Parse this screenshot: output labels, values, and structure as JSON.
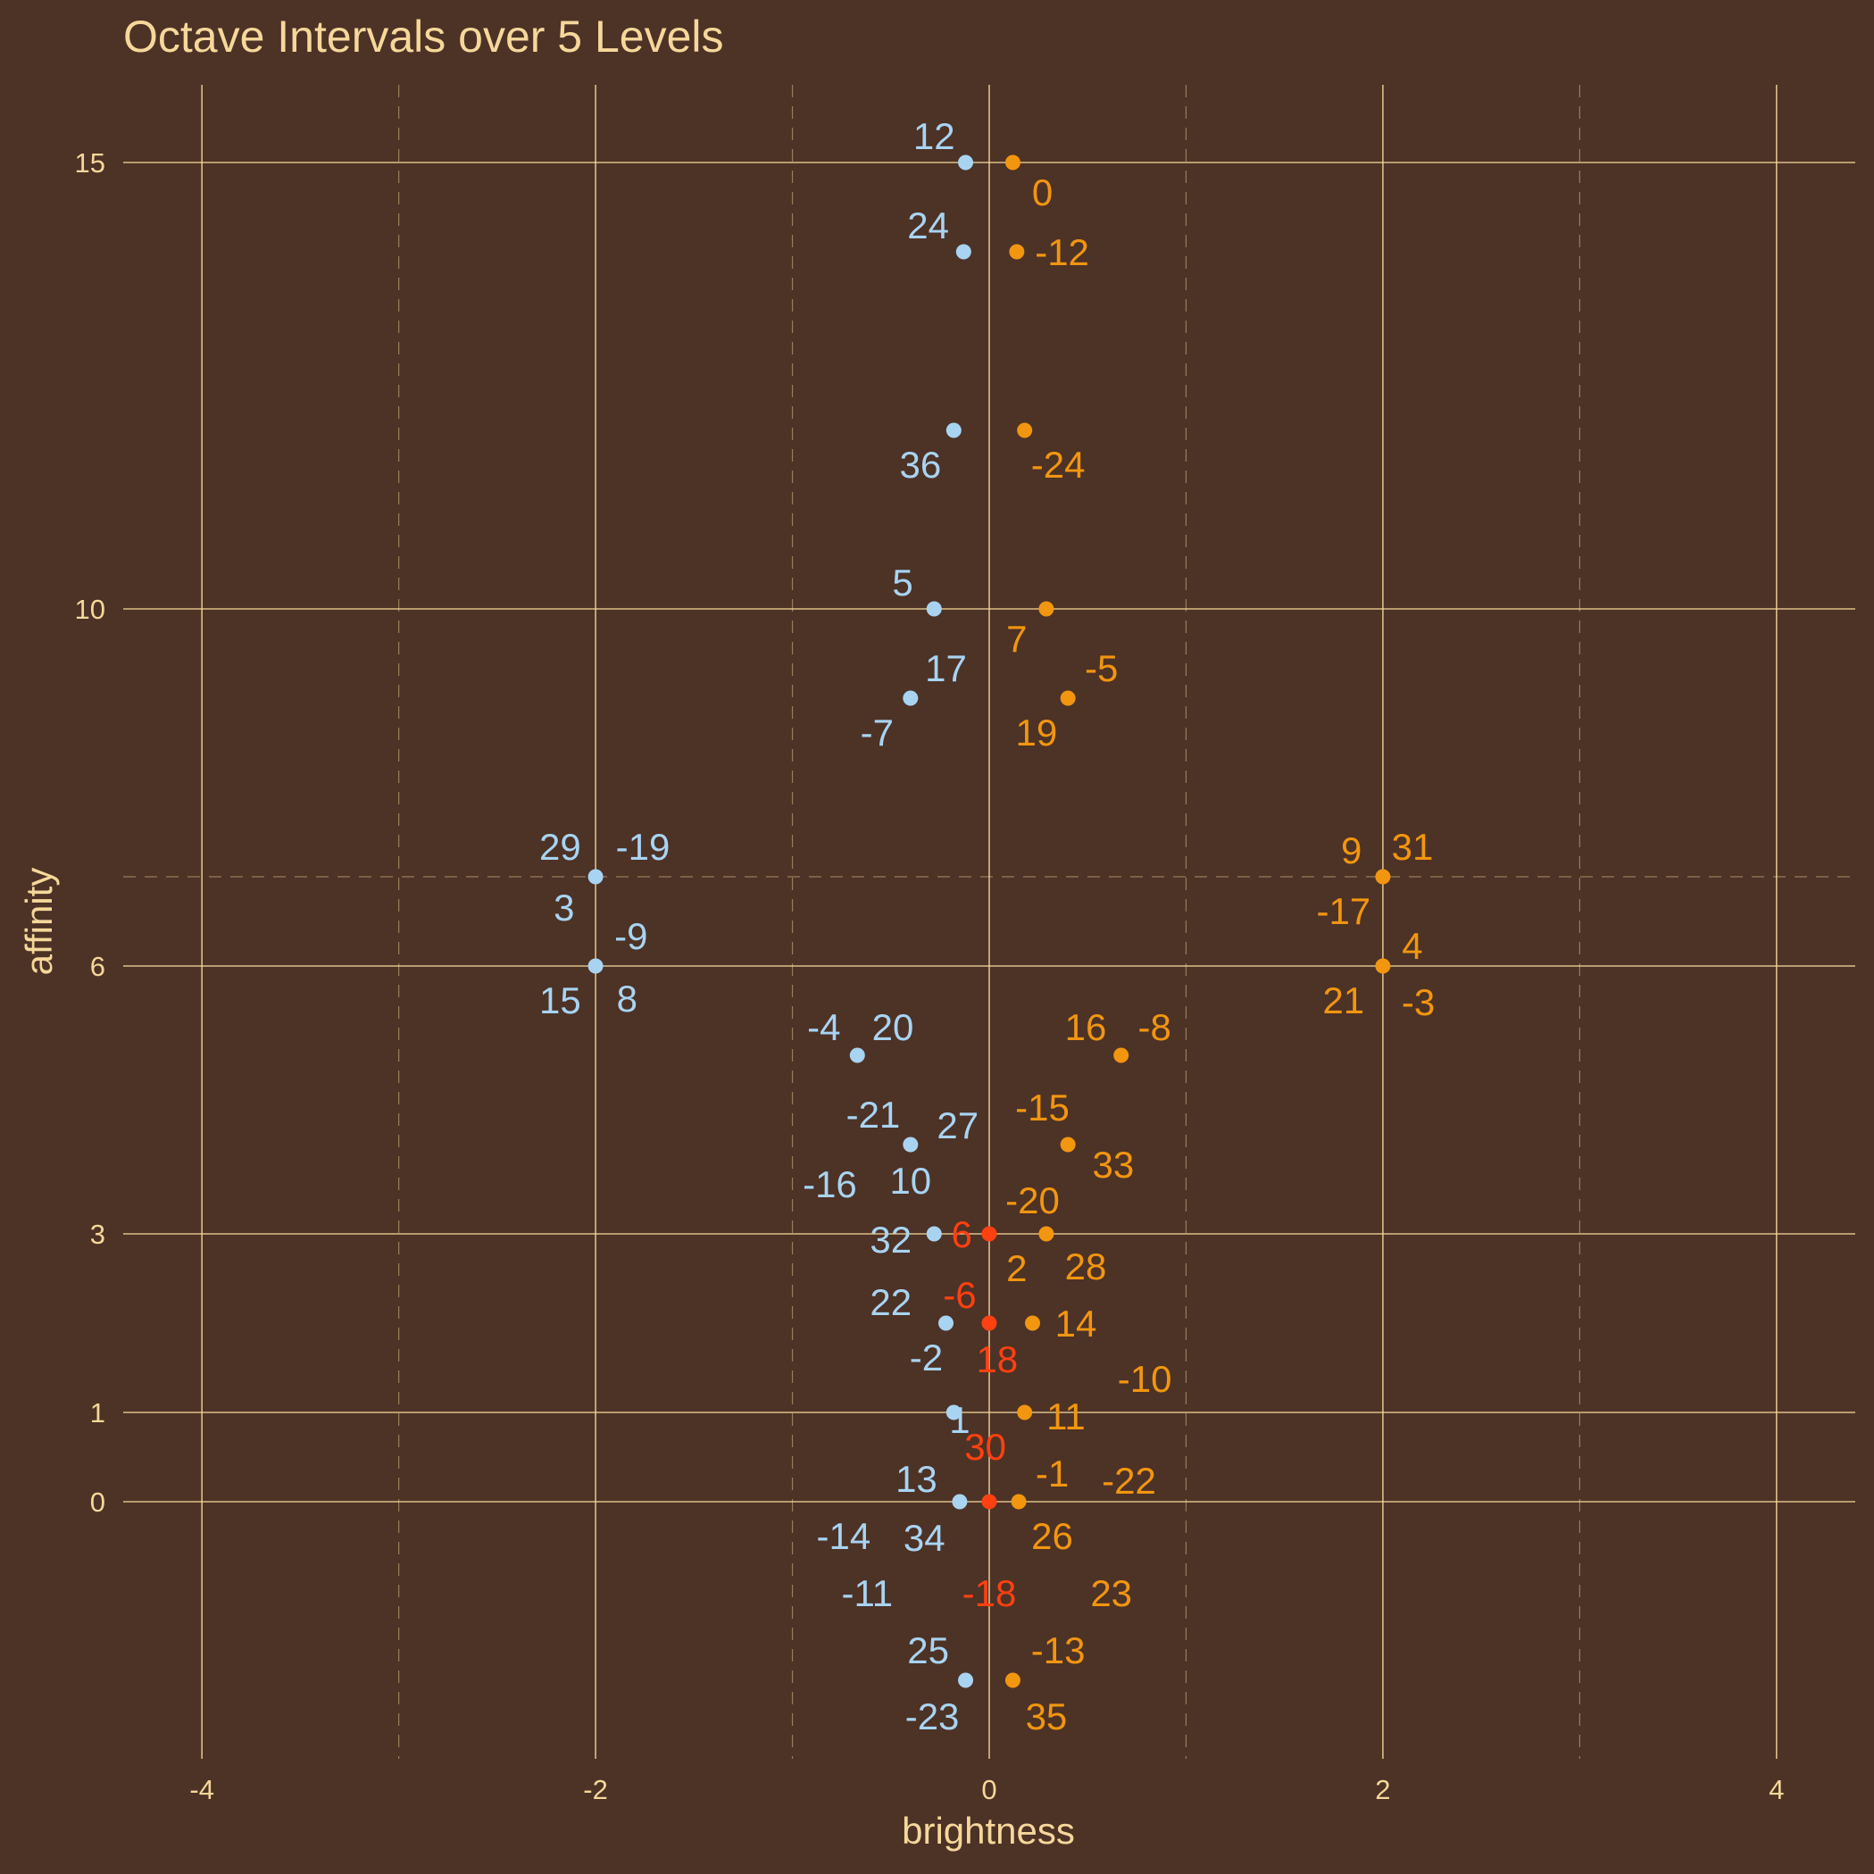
{
  "chart_data": {
    "type": "scatter",
    "title": "Octave Intervals over 5 Levels",
    "xlabel": "brightness",
    "ylabel": "affinity",
    "xlim": [
      -4.4,
      4.4
    ],
    "y_scale": "sqrt-like (affinity values increase non-linearly)",
    "x_ticks": [
      -4,
      -2,
      0,
      2,
      4
    ],
    "x_tick_labels": [
      "-4",
      "-2",
      "0",
      "2",
      "4"
    ],
    "y_ticks": [
      0,
      1,
      3,
      6,
      10,
      15
    ],
    "y_tick_labels": [
      "0",
      "1",
      "3",
      "6",
      "10",
      "15"
    ],
    "grid": true,
    "colors": {
      "background": "#4d3226",
      "grid": "#f5d89a",
      "text": "#f5d89a",
      "blue": "#a8d4f2",
      "orange": "#f2960f",
      "red": "#ff4010"
    },
    "points": [
      {
        "x": -0.12,
        "y": 15,
        "color": "blue"
      },
      {
        "x": 0.12,
        "y": 15,
        "color": "orange"
      },
      {
        "x": -0.13,
        "y": 14,
        "color": "blue"
      },
      {
        "x": 0.14,
        "y": 14,
        "color": "orange"
      },
      {
        "x": -0.18,
        "y": 12,
        "color": "blue"
      },
      {
        "x": 0.18,
        "y": 12,
        "color": "orange"
      },
      {
        "x": -0.28,
        "y": 10,
        "color": "blue"
      },
      {
        "x": 0.29,
        "y": 10,
        "color": "orange"
      },
      {
        "x": -0.4,
        "y": 9,
        "color": "blue"
      },
      {
        "x": 0.4,
        "y": 9,
        "color": "orange"
      },
      {
        "x": -2,
        "y": 7,
        "color": "blue"
      },
      {
        "x": 2,
        "y": 7,
        "color": "orange"
      },
      {
        "x": -2,
        "y": 6,
        "color": "blue"
      },
      {
        "x": 2,
        "y": 6,
        "color": "orange"
      },
      {
        "x": -0.67,
        "y": 5,
        "color": "blue"
      },
      {
        "x": 0.67,
        "y": 5,
        "color": "orange"
      },
      {
        "x": -0.4,
        "y": 4,
        "color": "blue"
      },
      {
        "x": 0.4,
        "y": 4,
        "color": "orange"
      },
      {
        "x": -0.28,
        "y": 3,
        "color": "blue"
      },
      {
        "x": 0,
        "y": 3,
        "color": "red"
      },
      {
        "x": 0.29,
        "y": 3,
        "color": "orange"
      },
      {
        "x": -0.22,
        "y": 2,
        "color": "blue"
      },
      {
        "x": 0,
        "y": 2,
        "color": "red"
      },
      {
        "x": 0.22,
        "y": 2,
        "color": "orange"
      },
      {
        "x": -0.18,
        "y": 1,
        "color": "blue"
      },
      {
        "x": 0.18,
        "y": 1,
        "color": "orange"
      },
      {
        "x": -0.15,
        "y": 0,
        "color": "blue"
      },
      {
        "x": 0,
        "y": 0,
        "color": "red"
      },
      {
        "x": 0.15,
        "y": 0,
        "color": "orange"
      },
      {
        "x": -0.12,
        "y": -2,
        "color": "blue"
      },
      {
        "x": 0.12,
        "y": -2,
        "color": "orange"
      }
    ],
    "labels": [
      {
        "text": "12",
        "x": -0.28,
        "y": 15,
        "dx": 0,
        "dy": -30,
        "color": "blue"
      },
      {
        "text": "0",
        "x": 0.27,
        "y": 15,
        "dx": 0,
        "dy": 33,
        "color": "orange"
      },
      {
        "text": "24",
        "x": -0.31,
        "y": 14,
        "dx": 0,
        "dy": -30,
        "color": "blue"
      },
      {
        "text": "-12",
        "x": 0.37,
        "y": 14,
        "dx": 0,
        "dy": 0,
        "color": "orange"
      },
      {
        "text": "36",
        "x": -0.35,
        "y": 12,
        "dx": 0,
        "dy": 38,
        "color": "blue"
      },
      {
        "text": "-24",
        "x": 0.35,
        "y": 12,
        "dx": 0,
        "dy": 38,
        "color": "orange"
      },
      {
        "text": "5",
        "x": -0.44,
        "y": 10,
        "dx": 0,
        "dy": -30,
        "color": "blue"
      },
      {
        "text": "7",
        "x": 0.14,
        "y": 10,
        "dx": 0,
        "dy": 33,
        "color": "orange"
      },
      {
        "text": "17",
        "x": -0.22,
        "y": 9,
        "dx": 0,
        "dy": -34,
        "color": "blue"
      },
      {
        "text": "-5",
        "x": 0.57,
        "y": 9,
        "dx": 0,
        "dy": -34,
        "color": "orange"
      },
      {
        "text": "-7",
        "x": -0.57,
        "y": 9,
        "dx": 0,
        "dy": 38,
        "color": "blue"
      },
      {
        "text": "19",
        "x": 0.24,
        "y": 9,
        "dx": 0,
        "dy": 38,
        "color": "orange"
      },
      {
        "text": "29",
        "x": -2.18,
        "y": 7,
        "dx": 0,
        "dy": -34,
        "color": "blue"
      },
      {
        "text": "-19",
        "x": -1.76,
        "y": 7,
        "dx": 0,
        "dy": -34,
        "color": "blue"
      },
      {
        "text": "3",
        "x": -2.16,
        "y": 7,
        "dx": 0,
        "dy": 34,
        "color": "blue"
      },
      {
        "text": "9",
        "x": 1.84,
        "y": 7,
        "dx": 0,
        "dy": -30,
        "color": "orange"
      },
      {
        "text": "31",
        "x": 2.15,
        "y": 7,
        "dx": 0,
        "dy": -34,
        "color": "orange"
      },
      {
        "text": "-17",
        "x": 1.8,
        "y": 7,
        "dx": 0,
        "dy": 38,
        "color": "orange"
      },
      {
        "text": "-9",
        "x": -1.82,
        "y": 6,
        "dx": 0,
        "dy": -34,
        "color": "blue"
      },
      {
        "text": "15",
        "x": -2.18,
        "y": 6,
        "dx": 0,
        "dy": 38,
        "color": "blue"
      },
      {
        "text": "8",
        "x": -1.84,
        "y": 6,
        "dx": 0,
        "dy": 36,
        "color": "blue"
      },
      {
        "text": "4",
        "x": 2.15,
        "y": 6,
        "dx": 0,
        "dy": -23,
        "color": "orange"
      },
      {
        "text": "21",
        "x": 1.8,
        "y": 6,
        "dx": 0,
        "dy": 38,
        "color": "orange"
      },
      {
        "text": "-3",
        "x": 2.18,
        "y": 6,
        "dx": 0,
        "dy": 40,
        "color": "orange"
      },
      {
        "text": "-4",
        "x": -0.84,
        "y": 5,
        "dx": 0,
        "dy": -32,
        "color": "blue"
      },
      {
        "text": "20",
        "x": -0.49,
        "y": 5,
        "dx": 0,
        "dy": -32,
        "color": "blue"
      },
      {
        "text": "16",
        "x": 0.49,
        "y": 5,
        "dx": 0,
        "dy": -32,
        "color": "orange"
      },
      {
        "text": "-8",
        "x": 0.84,
        "y": 5,
        "dx": 0,
        "dy": -32,
        "color": "orange"
      },
      {
        "text": "-21",
        "x": -0.59,
        "y": 4,
        "dx": 0,
        "dy": -34,
        "color": "blue"
      },
      {
        "text": "27",
        "x": -0.16,
        "y": 4,
        "dx": 0,
        "dy": -22,
        "color": "blue"
      },
      {
        "text": "-15",
        "x": 0.27,
        "y": 4,
        "dx": 0,
        "dy": -42,
        "color": "orange"
      },
      {
        "text": "33",
        "x": 0.63,
        "y": 4,
        "dx": 0,
        "dy": 22,
        "color": "orange"
      },
      {
        "text": "-16",
        "x": -0.81,
        "y": 3,
        "dx": 0,
        "dy": -56,
        "color": "blue"
      },
      {
        "text": "10",
        "x": -0.4,
        "y": 3,
        "dx": 0,
        "dy": -60,
        "color": "blue"
      },
      {
        "text": "-20",
        "x": 0.22,
        "y": 3,
        "dx": 0,
        "dy": -38,
        "color": "orange"
      },
      {
        "text": "32",
        "x": -0.5,
        "y": 3,
        "dx": 0,
        "dy": 6,
        "color": "blue"
      },
      {
        "text": "6",
        "x": -0.14,
        "y": 3,
        "dx": 0,
        "dy": 0,
        "color": "red"
      },
      {
        "text": "2",
        "x": 0.14,
        "y": 3,
        "dx": 0,
        "dy": 38,
        "color": "orange"
      },
      {
        "text": "28",
        "x": 0.49,
        "y": 3,
        "dx": 0,
        "dy": 36,
        "color": "orange"
      },
      {
        "text": "22",
        "x": -0.5,
        "y": 2,
        "dx": 0,
        "dy": -24,
        "color": "blue"
      },
      {
        "text": "-6",
        "x": -0.15,
        "y": 2,
        "dx": 0,
        "dy": -32,
        "color": "red"
      },
      {
        "text": "14",
        "x": 0.44,
        "y": 2,
        "dx": 0,
        "dy": 0,
        "color": "orange"
      },
      {
        "text": "-2",
        "x": -0.32,
        "y": 2,
        "dx": 0,
        "dy": 38,
        "color": "blue"
      },
      {
        "text": "18",
        "x": 0.04,
        "y": 2,
        "dx": 0,
        "dy": 40,
        "color": "red"
      },
      {
        "text": "-10",
        "x": 0.79,
        "y": 1,
        "dx": 0,
        "dy": -38,
        "color": "orange"
      },
      {
        "text": "1",
        "x": -0.15,
        "y": 1,
        "dx": 0,
        "dy": 8,
        "color": "blue"
      },
      {
        "text": "11",
        "x": 0.39,
        "y": 1,
        "dx": 0,
        "dy": 4,
        "color": "orange"
      },
      {
        "text": "30",
        "x": -0.02,
        "y": 1,
        "dx": 0,
        "dy": 38,
        "color": "red"
      },
      {
        "text": "-1",
        "x": 0.32,
        "y": 0,
        "dx": 0,
        "dy": -32,
        "color": "orange"
      },
      {
        "text": "-22",
        "x": 0.71,
        "y": 0,
        "dx": 0,
        "dy": -24,
        "color": "orange"
      },
      {
        "text": "13",
        "x": -0.37,
        "y": 0,
        "dx": 0,
        "dy": -26,
        "color": "blue"
      },
      {
        "text": "-14",
        "x": -0.74,
        "y": 0,
        "dx": 0,
        "dy": 38,
        "color": "blue"
      },
      {
        "text": "34",
        "x": -0.33,
        "y": 0,
        "dx": 0,
        "dy": 40,
        "color": "blue"
      },
      {
        "text": "26",
        "x": 0.32,
        "y": 0,
        "dx": 0,
        "dy": 38,
        "color": "orange"
      },
      {
        "text": "-11",
        "x": -0.62,
        "y": 0,
        "dx": 0,
        "dy": 102,
        "color": "blue"
      },
      {
        "text": "-18",
        "x": 0,
        "y": 0,
        "dx": 0,
        "dy": 102,
        "color": "red"
      },
      {
        "text": "23",
        "x": 0.62,
        "y": 0,
        "dx": 0,
        "dy": 102,
        "color": "orange"
      },
      {
        "text": "25",
        "x": -0.31,
        "y": -2,
        "dx": 0,
        "dy": -34,
        "color": "blue"
      },
      {
        "text": "-13",
        "x": 0.35,
        "y": -2,
        "dx": 0,
        "dy": -34,
        "color": "orange"
      },
      {
        "text": "-23",
        "x": -0.29,
        "y": -2,
        "dx": 0,
        "dy": 40,
        "color": "blue"
      },
      {
        "text": "35",
        "x": 0.29,
        "y": -2,
        "dx": 0,
        "dy": 40,
        "color": "orange"
      }
    ]
  }
}
